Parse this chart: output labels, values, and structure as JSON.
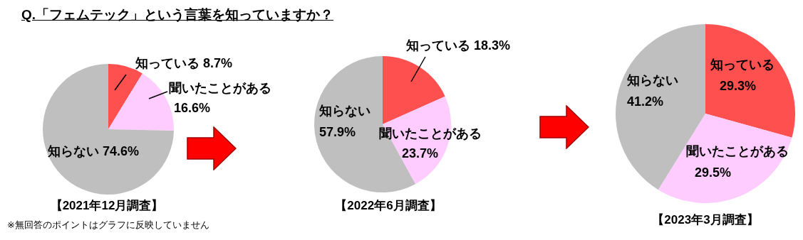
{
  "chart_data": [
    {
      "type": "pie",
      "title": "Q.「フェムテック」という言葉を知っていますか？",
      "xlabel": "【2021年12月調査】",
      "categories": [
        "知っている",
        "聞いたことがある",
        "知らない"
      ],
      "values": [
        8.7,
        16.6,
        74.6
      ],
      "value_labels": [
        "8.7%",
        "16.6%",
        "74.6%"
      ],
      "colors": [
        "#ff5050",
        "#ffccff",
        "#bfbfbf"
      ],
      "annotations": [
        "※無回答のポイントはグラフに反映していません"
      ]
    },
    {
      "type": "pie",
      "xlabel": "【2022年6月調査】",
      "categories": [
        "知っている",
        "聞いたことがある",
        "知らない"
      ],
      "values": [
        18.3,
        23.7,
        57.9
      ],
      "value_labels": [
        "18.3%",
        "23.7%",
        "57.9%"
      ],
      "colors": [
        "#ff5050",
        "#ffccff",
        "#bfbfbf"
      ]
    },
    {
      "type": "pie",
      "xlabel": "【2023年3月調査】",
      "categories": [
        "知っている",
        "聞いたことがある",
        "知らない"
      ],
      "values": [
        29.3,
        29.5,
        41.2
      ],
      "value_labels": [
        "29.3%",
        "29.5%",
        "41.2%"
      ],
      "colors": [
        "#ff5050",
        "#ffccff",
        "#bfbfbf"
      ]
    }
  ]
}
